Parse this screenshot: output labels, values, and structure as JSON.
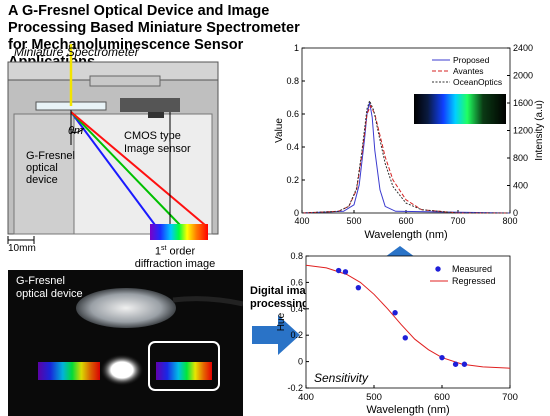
{
  "title": "A G-Fresnel Optical Device and Image Processing Based Miniature Spectrometer for Mechanoluminescence Sensor Applications",
  "diagram": {
    "spectrometer_label": "Miniature Spectrometer",
    "angle_label": "θm",
    "gfresnel_label_lines": [
      "G-Fresnel",
      "optical",
      "device"
    ],
    "cmos_label_lines": [
      "CMOS type",
      "Image sensor"
    ],
    "scale_label": "10mm",
    "diffraction_label_line1_sup": "st",
    "diffraction_label_line1_pre": "1",
    "diffraction_label_line1_post": " order",
    "diffraction_label_line2": "diffraction image"
  },
  "photo": {
    "label_lines": [
      "G-Fresnel",
      "optical device"
    ]
  },
  "arrow_label_lines": [
    "Digital image",
    "processing"
  ],
  "colors": {
    "proposed": "#3b3bcf",
    "avantes": "#d42020",
    "oceanoptics": "#303030",
    "measured": "#1f1fd8",
    "regressed": "#e02020",
    "arrow": "#2a73c7"
  },
  "chart_data": [
    {
      "type": "line",
      "xlabel": "Wavelength (nm)",
      "ylabel": "Value",
      "ylabel_right": "Intensity (a.u)",
      "xlim": [
        400,
        800
      ],
      "ylim": [
        0,
        1
      ],
      "ylim_right": [
        0,
        2400
      ],
      "xticks": [
        400,
        500,
        600,
        700,
        800
      ],
      "yticks": [
        "0",
        "0.2",
        "0.4",
        "0.6",
        "0.8",
        "1"
      ],
      "yticks_right": [
        "0",
        "400",
        "800",
        "1200",
        "1600",
        "2000",
        "2400"
      ],
      "legend_position": "top-right",
      "series": [
        {
          "name": "Proposed",
          "x": [
            400,
            480,
            500,
            510,
            520,
            525,
            530,
            535,
            540,
            550,
            560,
            580,
            800
          ],
          "y": [
            0,
            0.01,
            0.05,
            0.17,
            0.44,
            0.6,
            0.67,
            0.58,
            0.38,
            0.14,
            0.04,
            0.01,
            0
          ]
        },
        {
          "name": "Avantes",
          "x": [
            400,
            470,
            490,
            505,
            515,
            525,
            532,
            540,
            550,
            560,
            575,
            600,
            630,
            700,
            800
          ],
          "y": [
            0,
            0.01,
            0.04,
            0.14,
            0.35,
            0.6,
            0.65,
            0.6,
            0.47,
            0.34,
            0.2,
            0.08,
            0.02,
            0,
            0
          ]
        },
        {
          "name": "OceanOptics",
          "x": [
            400,
            470,
            490,
            505,
            515,
            525,
            530,
            538,
            548,
            560,
            575,
            600,
            630,
            700,
            800
          ],
          "y": [
            0,
            0.01,
            0.04,
            0.15,
            0.37,
            0.63,
            0.68,
            0.62,
            0.47,
            0.3,
            0.16,
            0.06,
            0.02,
            0,
            0
          ]
        }
      ]
    },
    {
      "type": "scatter",
      "xlabel": "Wavelength (nm)",
      "ylabel": "Hue",
      "xlim": [
        400,
        700
      ],
      "ylim": [
        -0.2,
        0.8
      ],
      "xticks": [
        400,
        500,
        600,
        700
      ],
      "yticks": [
        "-0.2",
        "0",
        "0.2",
        "0.4",
        "0.6",
        "0.8"
      ],
      "annotation": "Sensitivity",
      "legend_position": "top-right",
      "series": [
        {
          "name": "Measured",
          "x": [
            448,
            458,
            477,
            531,
            546,
            600,
            620,
            633
          ],
          "y": [
            0.69,
            0.68,
            0.56,
            0.37,
            0.18,
            0.03,
            -0.02,
            -0.02
          ]
        },
        {
          "name": "Regressed",
          "x": [
            400,
            430,
            460,
            480,
            500,
            520,
            540,
            560,
            580,
            600,
            630,
            660,
            700
          ],
          "y": [
            0.73,
            0.71,
            0.66,
            0.6,
            0.51,
            0.4,
            0.28,
            0.17,
            0.09,
            0.03,
            -0.02,
            -0.04,
            -0.05
          ]
        }
      ]
    }
  ]
}
